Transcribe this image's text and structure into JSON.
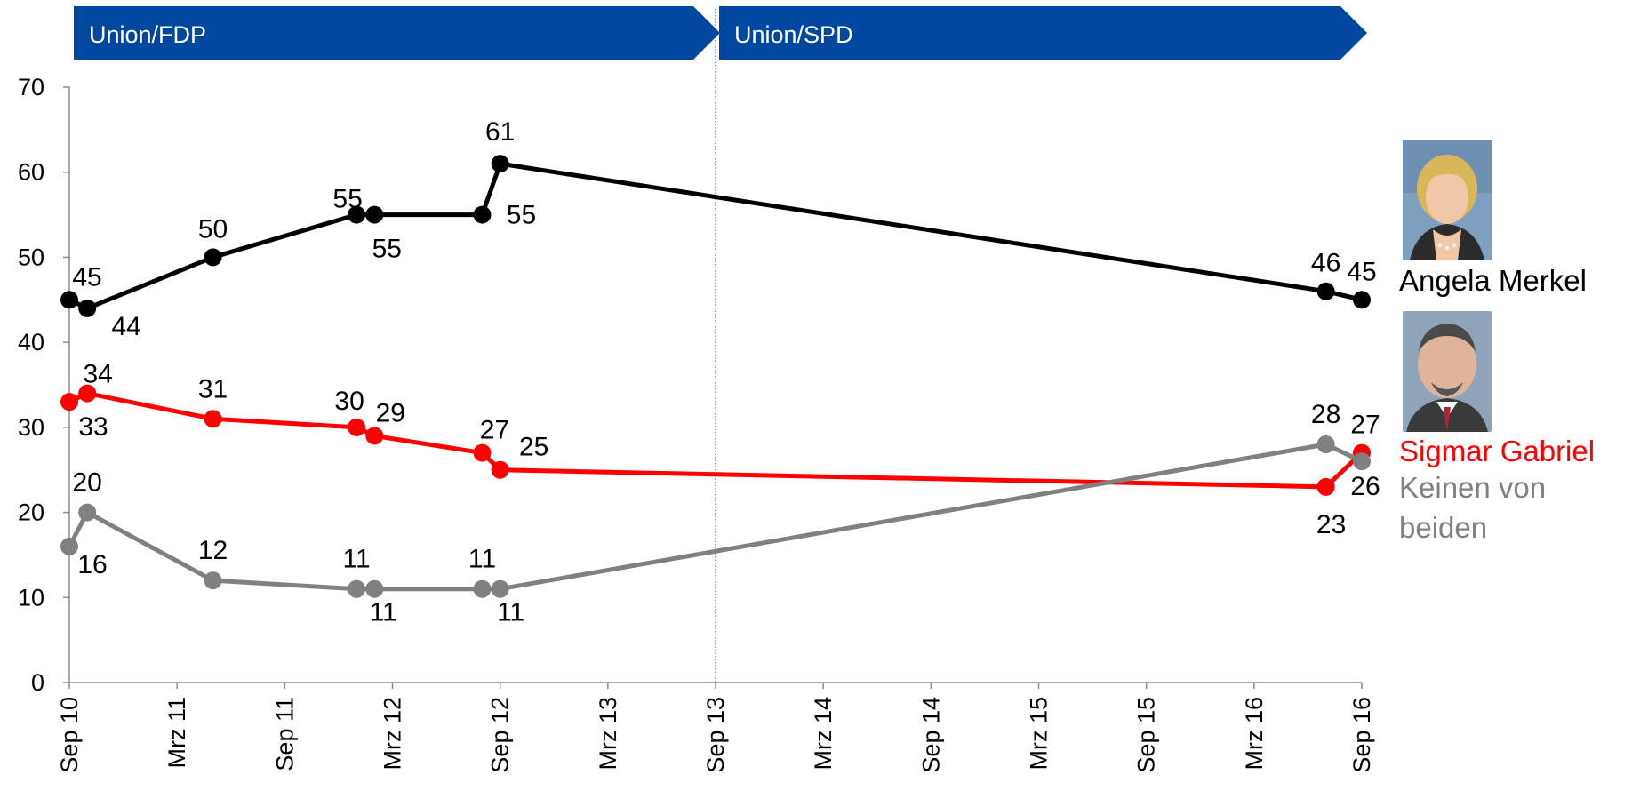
{
  "colors": {
    "merkel": "#000000",
    "gabriel": "#ff0000",
    "keinen": "#808080",
    "banner": "#0047a0",
    "axis": "#8c8c8c"
  },
  "banners": [
    {
      "label": "Union/FDP"
    },
    {
      "label": "Union/SPD"
    }
  ],
  "legend": {
    "merkel": {
      "label": "Angela Merkel",
      "icon": "merkel-portrait"
    },
    "gabriel": {
      "label": "Sigmar Gabriel",
      "icon": "gabriel-portrait"
    },
    "keinen": {
      "line1": "Keinen von",
      "line2": "beiden"
    }
  },
  "chart_data": {
    "type": "line",
    "title": "",
    "xlabel": "",
    "ylabel": "",
    "ylim": [
      0,
      70
    ],
    "yticks": [
      0,
      10,
      20,
      30,
      40,
      50,
      60,
      70
    ],
    "xlim": [
      "2010-09",
      "2016-09"
    ],
    "xticks": [
      {
        "date": "2010-09",
        "label": "Sep 10"
      },
      {
        "date": "2011-03",
        "label": "Mrz 11"
      },
      {
        "date": "2011-09",
        "label": "Sep 11"
      },
      {
        "date": "2012-03",
        "label": "Mrz 12"
      },
      {
        "date": "2012-09",
        "label": "Sep 12"
      },
      {
        "date": "2013-03",
        "label": "Mrz 13"
      },
      {
        "date": "2013-09",
        "label": "Sep 13"
      },
      {
        "date": "2014-03",
        "label": "Mrz 14"
      },
      {
        "date": "2014-09",
        "label": "Sep 14"
      },
      {
        "date": "2015-03",
        "label": "Mrz 15"
      },
      {
        "date": "2015-09",
        "label": "Sep 15"
      },
      {
        "date": "2016-03",
        "label": "Mrz 16"
      },
      {
        "date": "2016-09",
        "label": "Sep 16"
      }
    ],
    "period_divider": "2013-09",
    "x": [
      "2010-09",
      "2010-10",
      "2011-05",
      "2012-01",
      "2012-02",
      "2012-08",
      "2012-09",
      "2016-07",
      "2016-09"
    ],
    "series": [
      {
        "key": "merkel",
        "name": "Angela Merkel",
        "values": [
          45,
          44,
          50,
          55,
          55,
          55,
          61,
          46,
          45
        ]
      },
      {
        "key": "gabriel",
        "name": "Sigmar Gabriel",
        "values": [
          33,
          34,
          31,
          30,
          29,
          27,
          25,
          23,
          27
        ]
      },
      {
        "key": "keinen",
        "name": "Keinen von beiden",
        "values": [
          16,
          20,
          12,
          11,
          11,
          11,
          11,
          28,
          26
        ]
      }
    ],
    "grid": false,
    "legend_position": "right"
  }
}
